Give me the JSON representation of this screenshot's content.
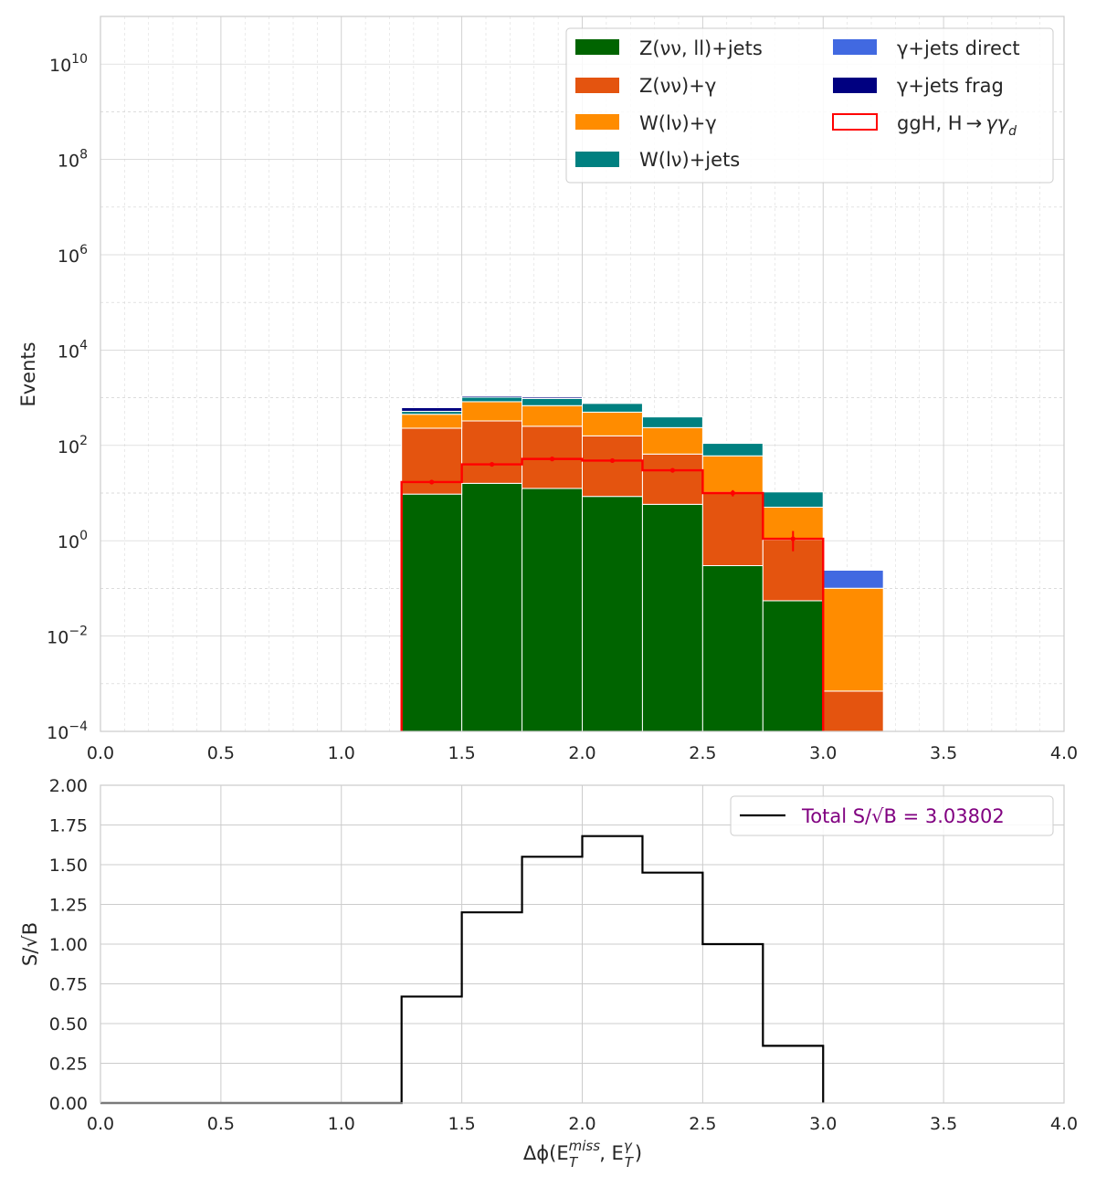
{
  "chart_data": [
    {
      "type": "stacked_histogram",
      "yscale": "log",
      "xlim": [
        0.0,
        4.0
      ],
      "ylim": [
        0.0001,
        100000000000
      ],
      "ylabel": "Events",
      "grid": true,
      "legend_position": "top-right",
      "bin_edges": [
        1.25,
        1.5,
        1.75,
        2.0,
        2.25,
        2.5,
        2.75,
        3.0,
        3.25
      ],
      "x_ticks": [
        "0.0",
        "0.5",
        "1.0",
        "1.5",
        "2.0",
        "2.5",
        "3.0",
        "3.5",
        "4.0"
      ],
      "y_ticks": [
        {
          "base": "10",
          "exp": "−4"
        },
        {
          "base": "10",
          "exp": "−2"
        },
        {
          "base": "10",
          "exp": "0"
        },
        {
          "base": "10",
          "exp": "2"
        },
        {
          "base": "10",
          "exp": "4"
        },
        {
          "base": "10",
          "exp": "6"
        },
        {
          "base": "10",
          "exp": "8"
        },
        {
          "base": "10",
          "exp": "10"
        }
      ],
      "series": [
        {
          "name": "Z(νν, ll)+jets",
          "color": "#006400",
          "values": [
            9.5,
            16,
            12.5,
            8.5,
            5.8,
            0.3,
            0.055,
            0
          ]
        },
        {
          "name": "Z(νν)+γ",
          "color": "#e4540f",
          "values": [
            220,
            310,
            240,
            150,
            60,
            10,
            1.0,
            0.0007
          ]
        },
        {
          "name": "W(lν)+γ",
          "color": "#ff8c00",
          "values": [
            220,
            500,
            430,
            340,
            170,
            50,
            4,
            0.1
          ]
        },
        {
          "name": "W(lν)+jets",
          "color": "#008080",
          "values": [
            70,
            200,
            280,
            260,
            160,
            50,
            5.5,
            0
          ]
        },
        {
          "name": "γ+jets direct",
          "color": "#4169e1",
          "values": [
            0,
            0,
            0,
            0,
            0,
            0,
            0,
            0.14
          ]
        },
        {
          "name": "γ+jets frag",
          "color": "#000080",
          "values": [
            100,
            70,
            70,
            0,
            0,
            0,
            0,
            0
          ]
        }
      ],
      "signal": {
        "name": "ggH, H→γγ_d",
        "legend_main": "ggH, H",
        "legend_arrow": "→",
        "legend_gamma": "γγ",
        "legend_sub": "d",
        "color": "#ff0000",
        "values": [
          17,
          40,
          52,
          48,
          30,
          10,
          1.1,
          0
        ],
        "errors_low": [
          1.5,
          2.5,
          3,
          3,
          2.5,
          1.5,
          0.5,
          0
        ],
        "errors_high": [
          1.5,
          2.5,
          3,
          3,
          2.5,
          1.5,
          0.5,
          0
        ]
      },
      "legend_labels": {
        "z_jets": "Z(νν, ll)+jets",
        "z_gamma": "Z(νν)+γ",
        "w_gamma": "W(lν)+γ",
        "w_jets": "W(lν)+jets",
        "gjets_direct": "γ+jets direct",
        "gjets_frag": "γ+jets frag"
      }
    },
    {
      "type": "step",
      "xlim": [
        0.0,
        4.0
      ],
      "ylim": [
        0.0,
        2.0
      ],
      "ylabel": "S/√B",
      "xlabel_main": "Δϕ(E",
      "xlabel_sub1": "T",
      "xlabel_sup1": "miss",
      "xlabel_mid": ", E",
      "xlabel_sub2": "T",
      "xlabel_sup2": "γ",
      "xlabel_end": ")",
      "grid": true,
      "legend_position": "top-right",
      "legend_label": "Total S/√B = 3.03802",
      "legend_text_color": "#800080",
      "bin_edges": [
        1.25,
        1.5,
        1.75,
        2.0,
        2.25,
        2.5,
        2.75,
        3.0
      ],
      "values": [
        0.67,
        1.2,
        1.55,
        1.68,
        1.45,
        1.0,
        0.36
      ],
      "x_ticks": [
        "0.0",
        "0.5",
        "1.0",
        "1.5",
        "2.0",
        "2.5",
        "3.0",
        "3.5",
        "4.0"
      ],
      "y_ticks": [
        "0.00",
        "0.25",
        "0.50",
        "0.75",
        "1.00",
        "1.25",
        "1.50",
        "1.75",
        "2.00"
      ]
    }
  ]
}
